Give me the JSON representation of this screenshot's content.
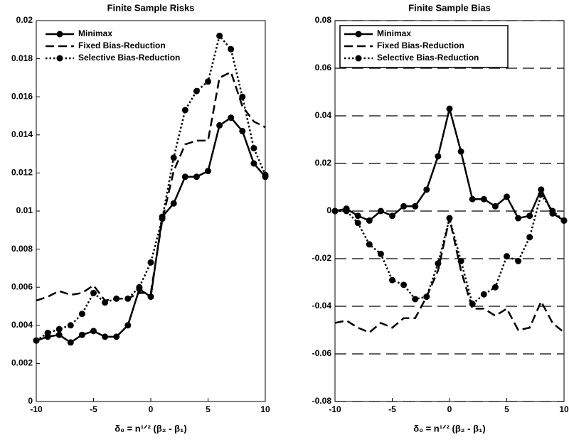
{
  "chart_data": [
    {
      "type": "line",
      "title": "Finite Sample Risks",
      "xlabel": "δ₀ = n¹ᐟ² (β₂ - β₁)",
      "x": [
        -10,
        -9,
        -8,
        -7,
        -6,
        -5,
        -4,
        -3,
        -2,
        -1,
        0,
        1,
        2,
        3,
        4,
        5,
        6,
        7,
        8,
        9,
        10
      ],
      "xlim": [
        -10,
        10
      ],
      "xticks": [
        -10,
        -5,
        0,
        5,
        10
      ],
      "ylim": [
        0,
        0.02
      ],
      "yticks": [
        0,
        0.002,
        0.004,
        0.006,
        0.008,
        0.01,
        0.012,
        0.014,
        0.016,
        0.018,
        0.02
      ],
      "grid": false,
      "legend": "upper left",
      "legend_box": false,
      "series": [
        {
          "name": "Minimax",
          "color": "#000000",
          "line_style": "solid",
          "marker": "circle",
          "values": [
            0.0032,
            0.0034,
            0.0035,
            0.0031,
            0.0035,
            0.0037,
            0.0034,
            0.0034,
            0.004,
            0.0059,
            0.0055,
            0.0097,
            0.0104,
            0.0118,
            0.0118,
            0.0121,
            0.0145,
            0.0149,
            0.0142,
            0.0125,
            0.0118
          ]
        },
        {
          "name": "Fixed Bias-Reduction",
          "color": "#000000",
          "line_style": "dashed",
          "marker": "none",
          "values": [
            0.0053,
            0.0055,
            0.0058,
            0.0056,
            0.0057,
            0.0061,
            0.0053,
            0.0054,
            0.0054,
            0.0057,
            0.0057,
            0.0095,
            0.0121,
            0.0135,
            0.0137,
            0.0137,
            0.017,
            0.0173,
            0.0155,
            0.0147,
            0.0144
          ]
        },
        {
          "name": "Selective Bias-Reduction",
          "color": "#000000",
          "line_style": "dotted",
          "marker": "circle",
          "values": [
            0.0032,
            0.0036,
            0.0038,
            0.004,
            0.0046,
            0.0057,
            0.0052,
            0.0054,
            0.0054,
            0.006,
            0.0073,
            0.0096,
            0.0128,
            0.0153,
            0.0163,
            0.0168,
            0.0192,
            0.0185,
            0.016,
            0.0133,
            0.0119
          ]
        }
      ]
    },
    {
      "type": "line",
      "title": "Finite Sample Bias",
      "xlabel": "δ₀ = n¹ᐟ² (β₂ - β₁)",
      "x": [
        -10,
        -9,
        -8,
        -7,
        -6,
        -5,
        -4,
        -3,
        -2,
        -1,
        0,
        1,
        2,
        3,
        4,
        5,
        6,
        7,
        8,
        9,
        10
      ],
      "xlim": [
        -10,
        10
      ],
      "xticks": [
        -10,
        -5,
        0,
        5,
        10
      ],
      "ylim": [
        -0.08,
        0.08
      ],
      "yticks": [
        -0.08,
        -0.06,
        -0.04,
        -0.02,
        0,
        0.02,
        0.04,
        0.06,
        0.08
      ],
      "grid": true,
      "legend": "upper left",
      "legend_box": true,
      "series": [
        {
          "name": "Minimax",
          "color": "#000000",
          "line_style": "solid",
          "marker": "circle",
          "values": [
            0.0,
            0.001,
            -0.002,
            -0.004,
            0.0,
            -0.002,
            0.002,
            0.002,
            0.009,
            0.023,
            0.043,
            0.025,
            0.005,
            0.005,
            0.002,
            0.006,
            -0.003,
            -0.002,
            0.009,
            -0.001,
            -0.004
          ]
        },
        {
          "name": "Fixed Bias-Reduction",
          "color": "#000000",
          "line_style": "dashed",
          "marker": "none",
          "values": [
            -0.047,
            -0.046,
            -0.049,
            -0.051,
            -0.047,
            -0.049,
            -0.045,
            -0.045,
            -0.036,
            -0.025,
            -0.003,
            -0.025,
            -0.041,
            -0.041,
            -0.044,
            -0.041,
            -0.05,
            -0.049,
            -0.038,
            -0.047,
            -0.051
          ]
        },
        {
          "name": "Selective Bias-Reduction",
          "color": "#000000",
          "line_style": "dotted",
          "marker": "circle",
          "values": [
            0.0,
            0.0,
            -0.005,
            -0.014,
            -0.018,
            -0.029,
            -0.031,
            -0.037,
            -0.036,
            -0.022,
            -0.003,
            -0.021,
            -0.039,
            -0.035,
            -0.032,
            -0.019,
            -0.021,
            -0.011,
            0.007,
            0.0,
            -0.004
          ]
        }
      ]
    }
  ]
}
